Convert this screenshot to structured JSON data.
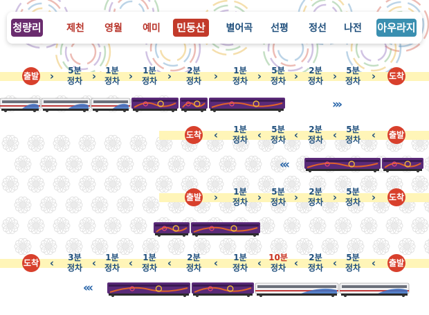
{
  "nav": {
    "stations": [
      {
        "name": "청량리",
        "style": "pill",
        "color": "#6a2c6e"
      },
      {
        "name": "제천",
        "style": "text",
        "color": "#b8342a"
      },
      {
        "name": "영월",
        "style": "text",
        "color": "#b8342a"
      },
      {
        "name": "예미",
        "style": "text",
        "color": "#b8342a"
      },
      {
        "name": "민둥산",
        "style": "pill",
        "color": "#c23a2a"
      },
      {
        "name": "별어곡",
        "style": "text",
        "color": "#1f4f7c"
      },
      {
        "name": "선평",
        "style": "text",
        "color": "#1f4f7c"
      },
      {
        "name": "정선",
        "style": "text",
        "color": "#1f4f7c"
      },
      {
        "name": "나전",
        "style": "text",
        "color": "#1f4f7c"
      },
      {
        "name": "아우라지",
        "style": "pill",
        "color": "#3a8fb0"
      }
    ]
  },
  "rows": [
    {
      "start": "출발",
      "end": "도착",
      "segments": [
        {
          "time": "5분",
          "label": "정차"
        },
        {
          "time": "1분",
          "label": "정차"
        },
        {
          "time": "1분",
          "label": "정차"
        },
        {
          "time": "2분",
          "label": "정차"
        },
        {
          "time": "1분",
          "label": "정차"
        },
        {
          "time": "5분",
          "label": "정차"
        },
        {
          "time": "2분",
          "label": "정차"
        },
        {
          "time": "5분",
          "label": "정차"
        }
      ],
      "arrow": "›",
      "move_mark": "›››"
    },
    {
      "start": "도착",
      "end": "출발",
      "segments": [
        {
          "time": "1분",
          "label": "정차"
        },
        {
          "time": "5분",
          "label": "정차"
        },
        {
          "time": "2분",
          "label": "정차"
        },
        {
          "time": "5분",
          "label": "정차"
        }
      ],
      "arrow": "‹",
      "move_mark": "‹‹‹"
    },
    {
      "start": "출발",
      "end": "도착",
      "segments": [
        {
          "time": "1분",
          "label": "정차"
        },
        {
          "time": "5분",
          "label": "정차"
        },
        {
          "time": "2분",
          "label": "정차"
        },
        {
          "time": "5분",
          "label": "정차"
        }
      ],
      "arrow": "›",
      "move_mark": ""
    },
    {
      "start": "도착",
      "end": "출발",
      "segments": [
        {
          "time": "3분",
          "label": "정차"
        },
        {
          "time": "1분",
          "label": "정차"
        },
        {
          "time": "1분",
          "label": "정차"
        },
        {
          "time": "2분",
          "label": "정차"
        },
        {
          "time": "1분",
          "label": "정차"
        },
        {
          "time": "10분",
          "label": "정차",
          "highlight": true
        },
        {
          "time": "2분",
          "label": "정차"
        },
        {
          "time": "5분",
          "label": "정차"
        }
      ],
      "arrow": "‹",
      "move_mark": "‹‹‹"
    }
  ]
}
